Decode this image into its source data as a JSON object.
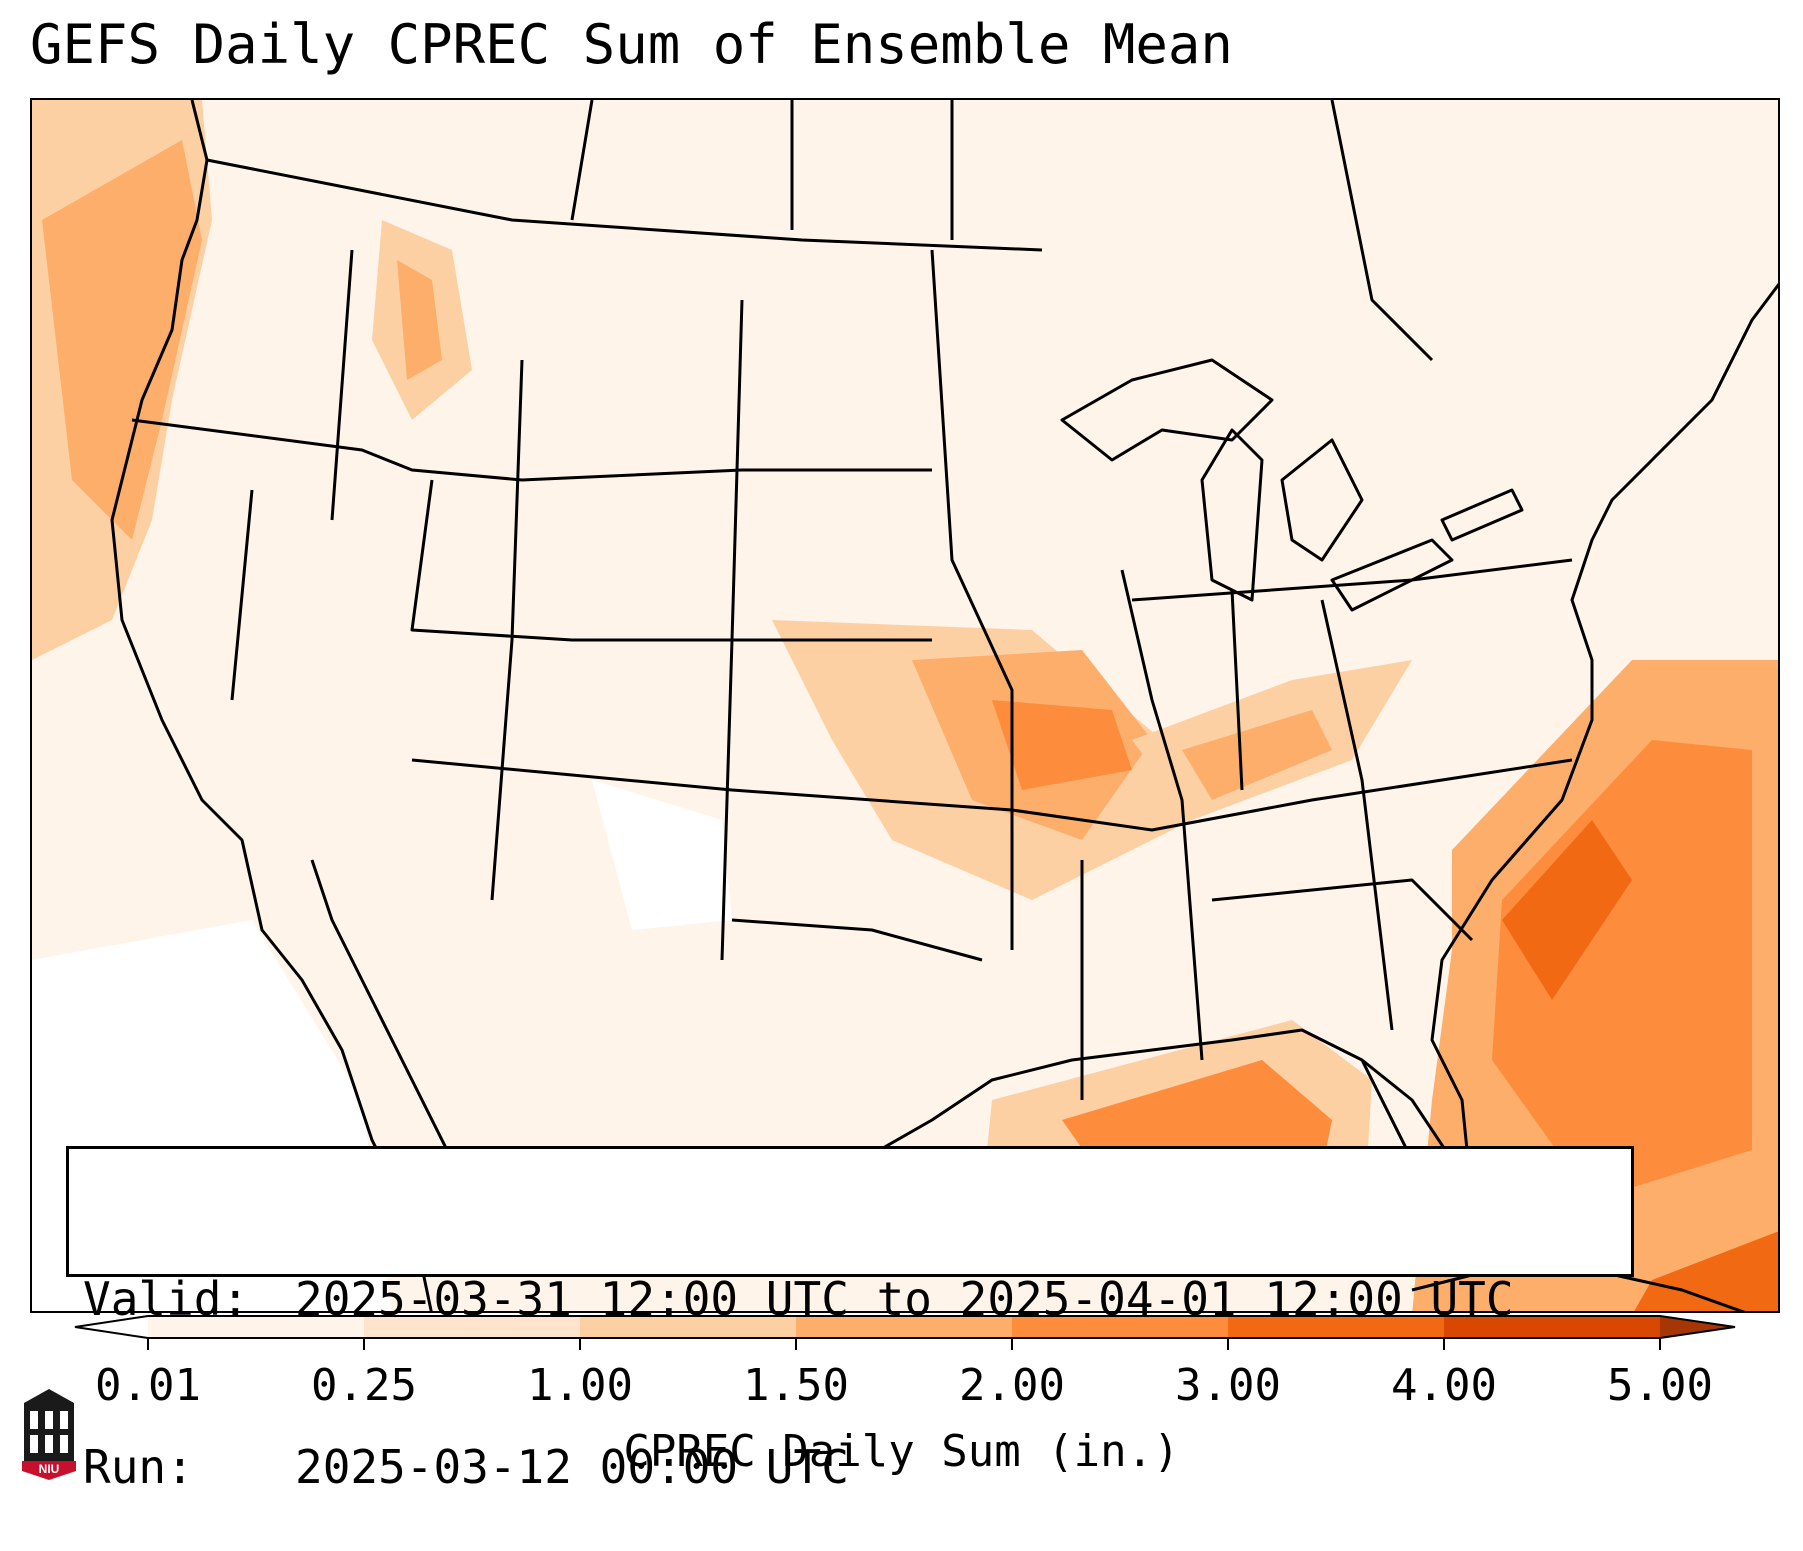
{
  "title": "GEFS Daily CPREC Sum of Ensemble Mean",
  "info": {
    "valid_label": "Valid:",
    "valid_value": "2025-03-31 12:00 UTC to 2025-04-01 12:00 UTC",
    "run_label": "Run:",
    "run_value": "2025-03-12 00:00 UTC"
  },
  "colorbar": {
    "label": "CPREC Daily Sum (in.)",
    "ticks": [
      "0.01",
      "0.25",
      "1.00",
      "1.50",
      "2.00",
      "3.00",
      "4.00",
      "5.00"
    ],
    "colors": [
      "#fff4ea",
      "#fee4cc",
      "#fdd0a4",
      "#fdae6b",
      "#fd8d3c",
      "#f16913",
      "#d94801",
      "#a63603"
    ]
  },
  "logo": {
    "text": "NIU"
  }
}
